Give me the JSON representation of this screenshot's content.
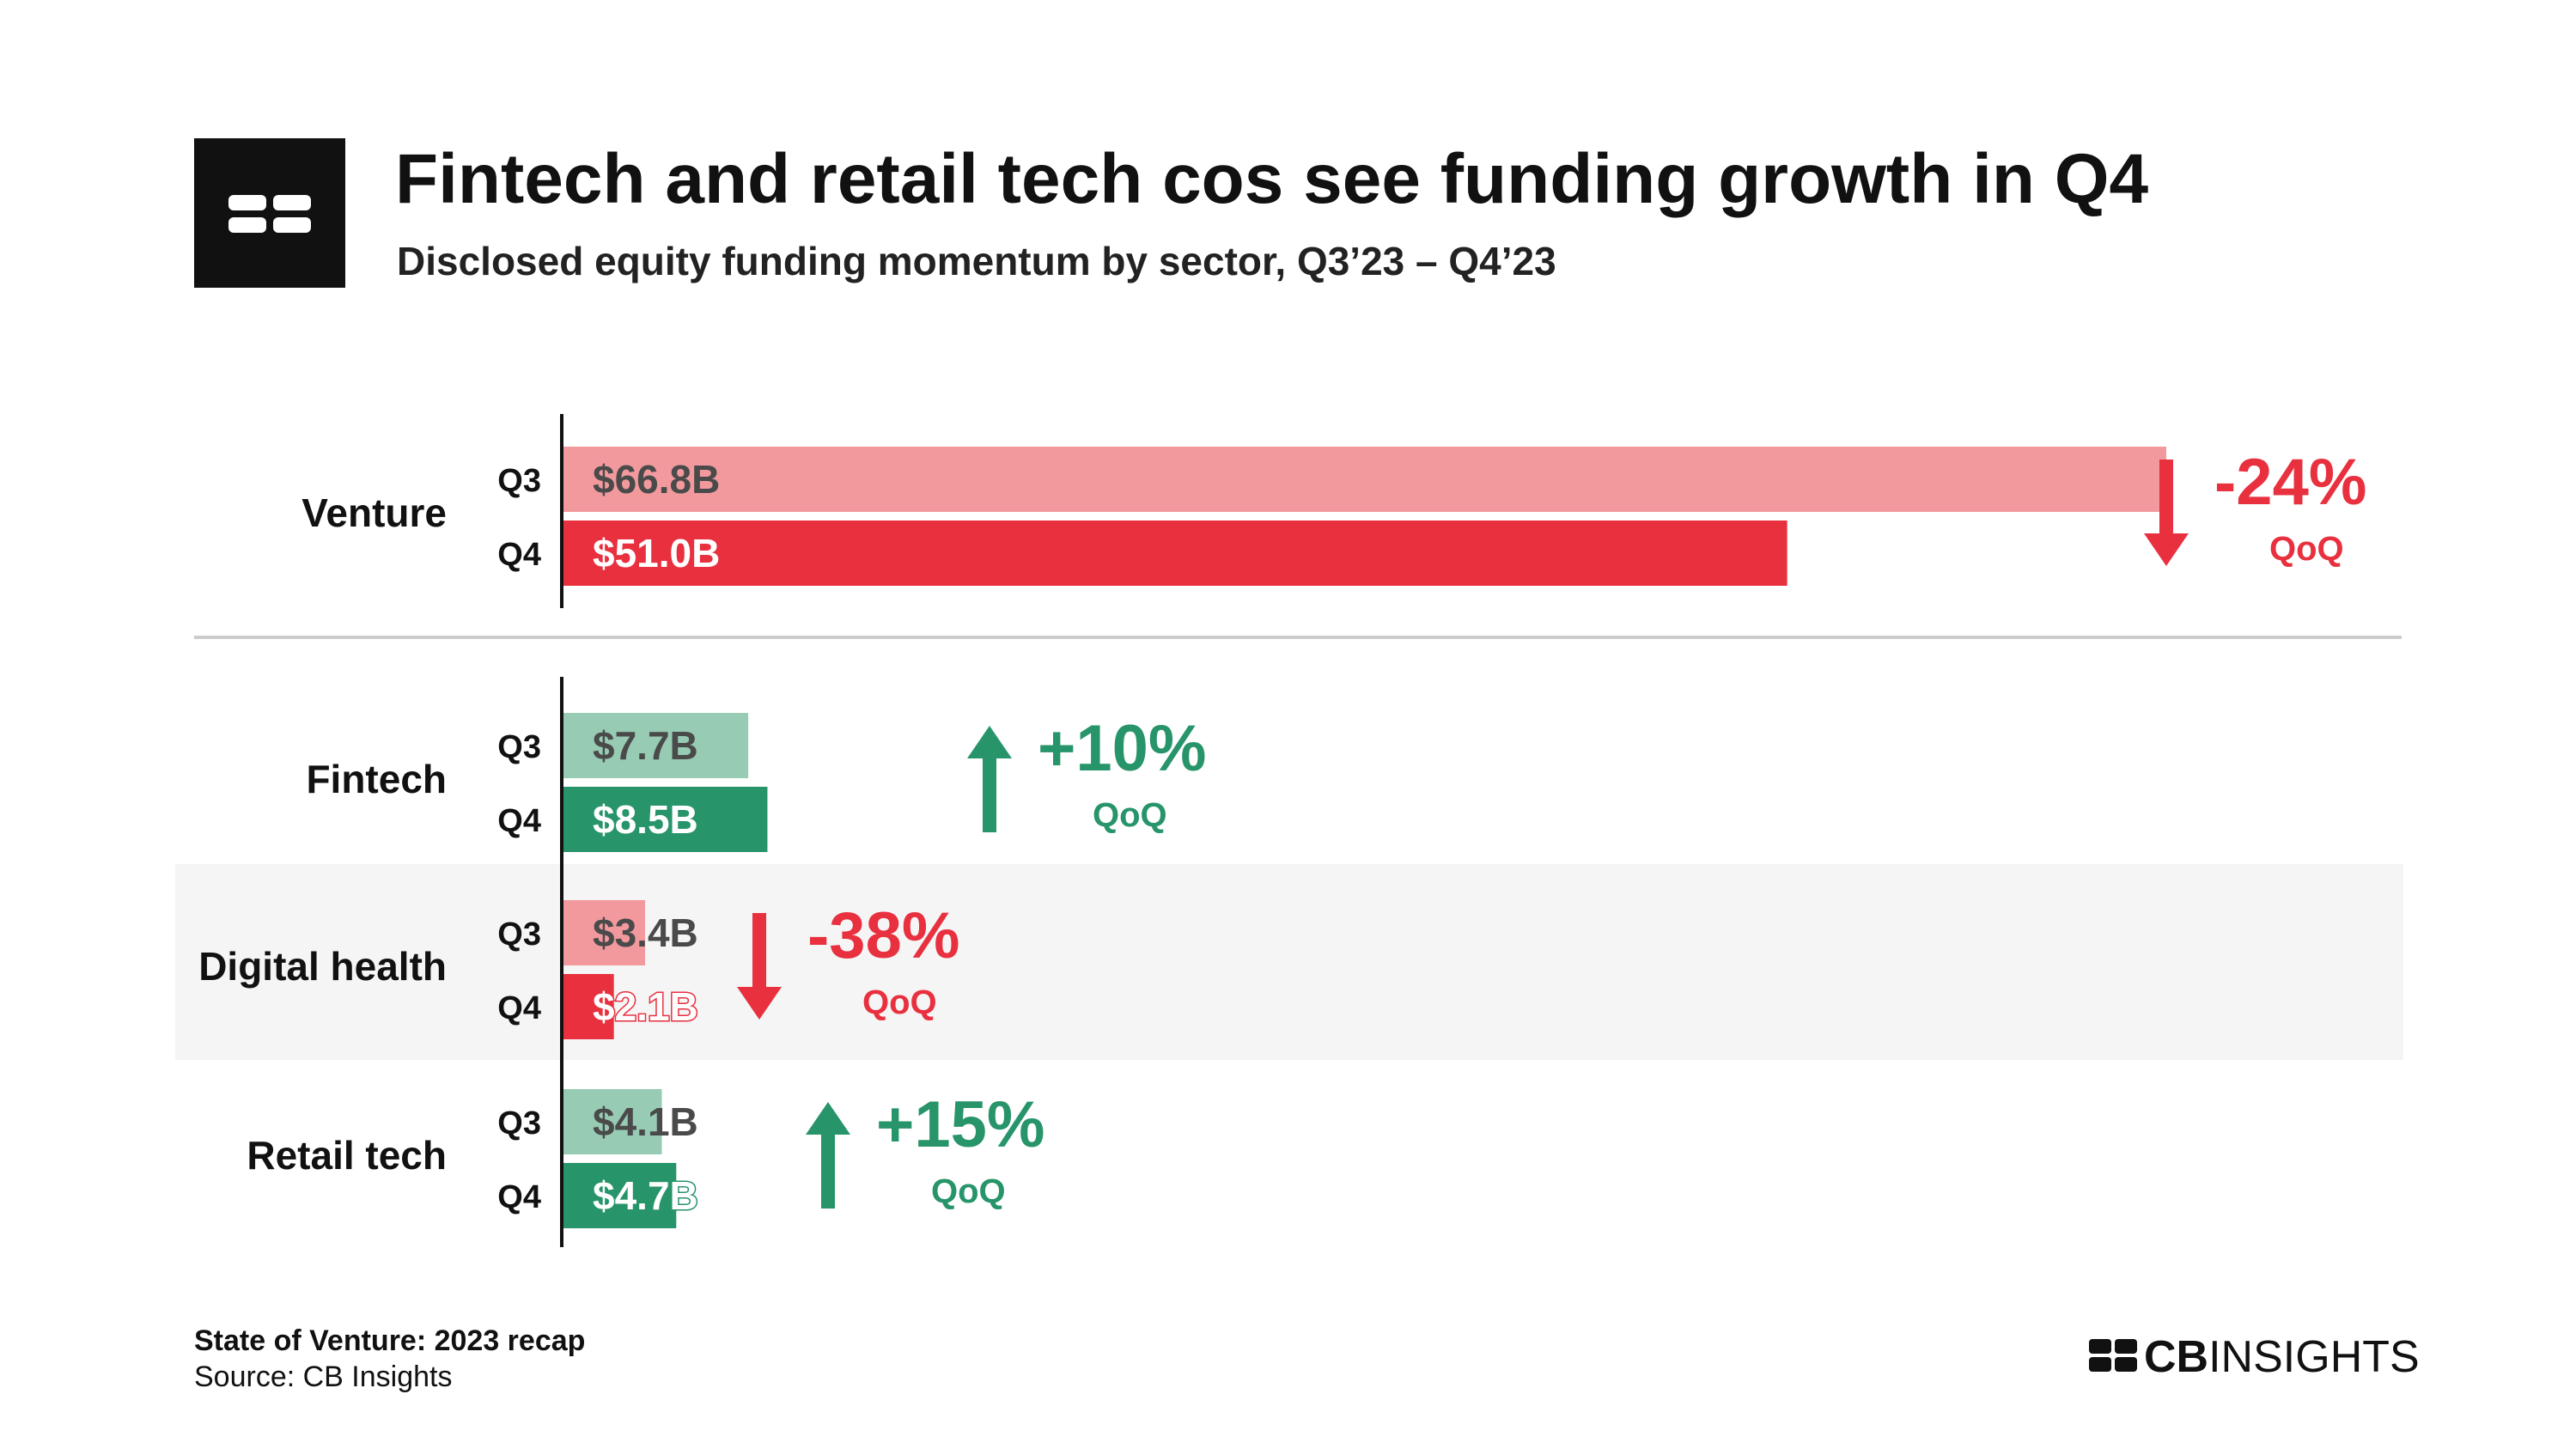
{
  "header": {
    "logo_icon": "cb-insights-logo-icon",
    "title": "Fintech and retail tech cos see funding growth in Q4",
    "subtitle": "Disclosed equity funding momentum by sector, Q3’23 – Q4’23"
  },
  "colors": {
    "down_q3": "#F2999E",
    "down_q4": "#E8303F",
    "up_q3": "#97CBB4",
    "up_q4": "#27946A",
    "q3_label_text": "#4A4A4A",
    "q4_label_text": "#FFFFFF",
    "axis": "#111111",
    "divider": "#CCCCCC",
    "band": "#F5F5F5"
  },
  "chart_data": {
    "type": "bar",
    "orientation": "horizontal",
    "title": "Fintech and retail tech cos see funding growth in Q4",
    "subtitle": "Disclosed equity funding momentum by sector, Q3’23 – Q4’23",
    "unit": "$B",
    "series_names": [
      "Q3",
      "Q4"
    ],
    "groups": [
      {
        "category": "Venture",
        "bars": [
          {
            "quarter": "Q3",
            "value": 66.8,
            "label": "$66.8B"
          },
          {
            "quarter": "Q4",
            "value": 51.0,
            "label": "$51.0B"
          }
        ],
        "change": "-24%",
        "change_unit": "QoQ",
        "direction": "down"
      },
      {
        "category": "Fintech",
        "bars": [
          {
            "quarter": "Q3",
            "value": 7.7,
            "label": "$7.7B"
          },
          {
            "quarter": "Q4",
            "value": 8.5,
            "label": "$8.5B"
          }
        ],
        "change": "+10%",
        "change_unit": "QoQ",
        "direction": "up"
      },
      {
        "category": "Digital health",
        "bars": [
          {
            "quarter": "Q3",
            "value": 3.4,
            "label": "$3.4B"
          },
          {
            "quarter": "Q4",
            "value": 2.1,
            "label": "$2.1B"
          }
        ],
        "change": "-38%",
        "change_unit": "QoQ",
        "direction": "down",
        "highlighted": true
      },
      {
        "category": "Retail tech",
        "bars": [
          {
            "quarter": "Q3",
            "value": 4.1,
            "label": "$4.1B"
          },
          {
            "quarter": "Q4",
            "value": 4.7,
            "label": "$4.7B"
          }
        ],
        "change": "+15%",
        "change_unit": "QoQ",
        "direction": "up"
      }
    ],
    "grid": false,
    "legend": "none"
  },
  "footer": {
    "report": "State of Venture: 2023 recap",
    "source": "Source: CB Insights",
    "brand_bold": "CB",
    "brand_light": "INSIGHTS",
    "brand_icon": "cb-insights-logo-icon"
  }
}
